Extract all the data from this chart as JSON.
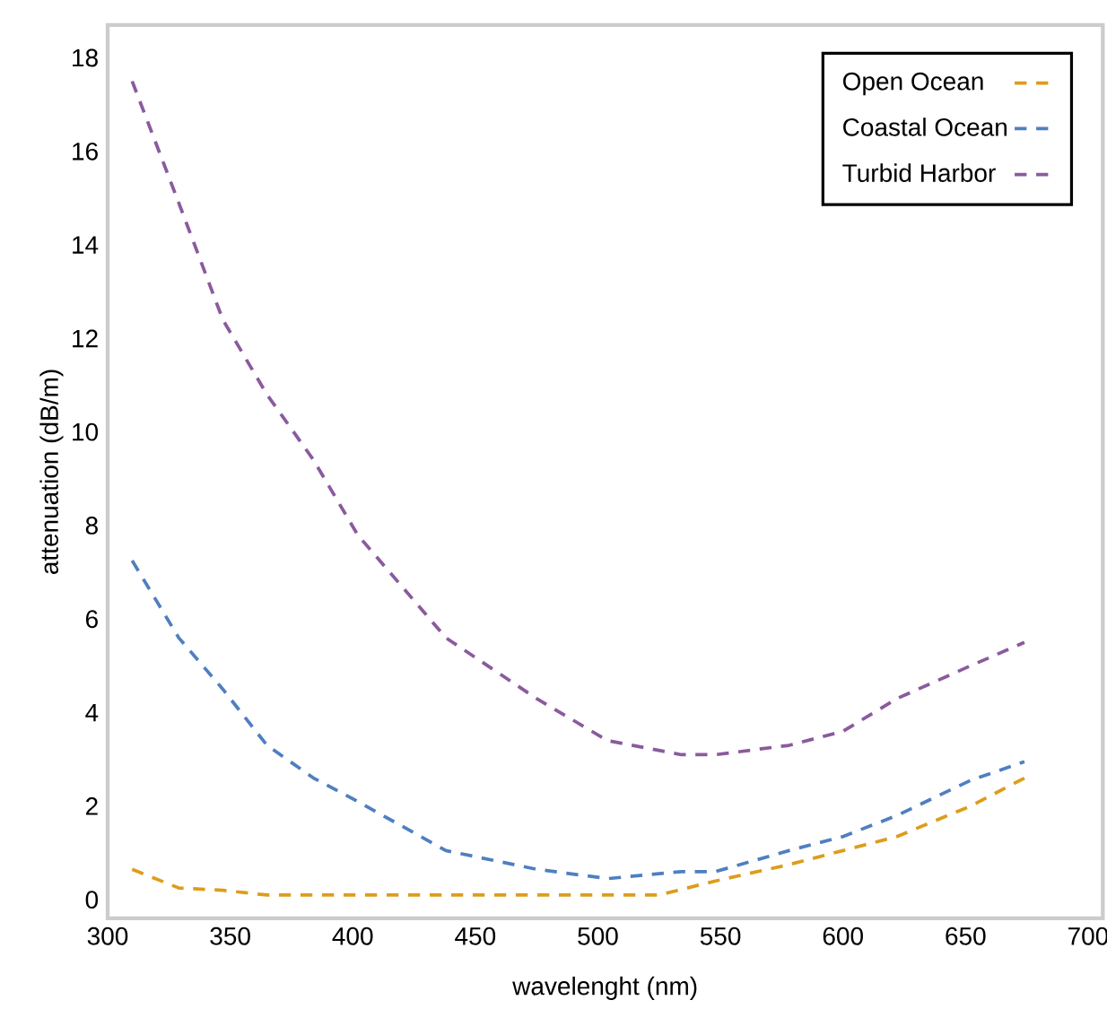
{
  "chart_data": {
    "type": "line",
    "xlabel": "wavelenght (nm)",
    "ylabel": "attenuation (dB/m)",
    "xlim": [
      300,
      706
    ],
    "ylim": [
      -0.4,
      18.7
    ],
    "xticks": [
      300,
      350,
      400,
      450,
      500,
      550,
      600,
      650,
      700
    ],
    "yticks": [
      0,
      2,
      4,
      6,
      8,
      10,
      12,
      14,
      16,
      18
    ],
    "grid": false,
    "legend": "top right",
    "line_style": "dashed",
    "marker": "none",
    "series": [
      {
        "name": "Open Ocean",
        "color": "#dc9d1c",
        "x": [
          310,
          329,
          347,
          365,
          384,
          402,
          438,
          475,
          504,
          525,
          548,
          578,
          600,
          622,
          652,
          674
        ],
        "values": [
          0.65,
          0.25,
          0.2,
          0.1,
          0.1,
          0.1,
          0.1,
          0.1,
          0.1,
          0.1,
          0.4,
          0.75,
          1.05,
          1.35,
          2.0,
          2.6
        ]
      },
      {
        "name": "Coastal Ocean",
        "color": "#4f7fc0",
        "x": [
          310,
          329,
          347,
          365,
          384,
          402,
          438,
          475,
          504,
          534,
          548,
          578,
          600,
          622,
          652,
          674
        ],
        "values": [
          7.25,
          5.6,
          4.5,
          3.3,
          2.6,
          2.1,
          1.05,
          0.65,
          0.45,
          0.6,
          0.6,
          1.05,
          1.35,
          1.8,
          2.55,
          2.95
        ]
      },
      {
        "name": "Turbid Harbor",
        "color": "#8a5a9e",
        "x": [
          310,
          329,
          347,
          365,
          384,
          402,
          438,
          475,
          504,
          534,
          548,
          578,
          600,
          622,
          652,
          674
        ],
        "values": [
          17.5,
          14.9,
          12.4,
          10.8,
          9.4,
          7.8,
          5.6,
          4.3,
          3.4,
          3.1,
          3.1,
          3.3,
          3.6,
          4.3,
          5.0,
          5.5
        ]
      }
    ]
  }
}
